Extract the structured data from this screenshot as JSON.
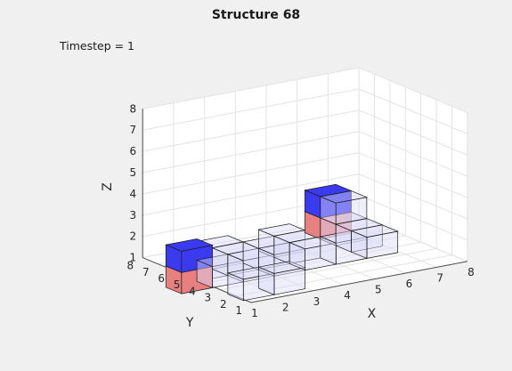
{
  "figure": {
    "title": "Structure 68",
    "annotation": "Timestep = 1"
  },
  "chart_data": {
    "type": "3d-voxel",
    "title": "Structure 68",
    "annotation": "Timestep = 1",
    "xlabel": "X",
    "ylabel": "Y",
    "zlabel": "Z",
    "xlim": [
      1,
      8
    ],
    "ylim": [
      1,
      8
    ],
    "zlim": [
      1,
      8
    ],
    "xticks": [
      "1",
      "2",
      "3",
      "4",
      "5",
      "6",
      "7",
      "8"
    ],
    "yticks": [
      "1",
      "2",
      "3",
      "4",
      "5",
      "6",
      "7",
      "8"
    ],
    "zticks": [
      "1",
      "2",
      "3",
      "4",
      "5",
      "6",
      "7",
      "8"
    ],
    "grid": true,
    "colors": {
      "empty": "#dcdcf8",
      "blue": "#3a3af0",
      "red": "#e88080"
    },
    "voxels": [
      {
        "x": 2,
        "y": 3,
        "z": 1,
        "color": "empty"
      },
      {
        "x": 3,
        "y": 3,
        "z": 1,
        "color": "empty"
      },
      {
        "x": 2,
        "y": 5,
        "z": 1,
        "color": "empty"
      },
      {
        "x": 2,
        "y": 6,
        "z": 1,
        "color": "empty"
      },
      {
        "x": 3,
        "y": 5,
        "z": 1,
        "color": "empty"
      },
      {
        "x": 3,
        "y": 6,
        "z": 1,
        "color": "empty"
      },
      {
        "x": 4,
        "y": 5,
        "z": 1,
        "color": "empty"
      },
      {
        "x": 4,
        "y": 6,
        "z": 1,
        "color": "empty"
      },
      {
        "x": 5,
        "y": 5,
        "z": 1,
        "color": "empty"
      },
      {
        "x": 5,
        "y": 6,
        "z": 1,
        "color": "empty"
      },
      {
        "x": 3,
        "y": 7,
        "z": 1,
        "color": "empty"
      },
      {
        "x": 5,
        "y": 7,
        "z": 1,
        "color": "empty"
      },
      {
        "x": 6,
        "y": 5,
        "z": 1,
        "color": "empty"
      },
      {
        "x": 7,
        "y": 5,
        "z": 1,
        "color": "empty"
      },
      {
        "x": 7,
        "y": 6,
        "z": 1,
        "color": "empty"
      },
      {
        "x": 7,
        "y": 7,
        "z": 1,
        "color": "empty"
      },
      {
        "x": 7,
        "y": 7,
        "z": 2,
        "color": "empty"
      },
      {
        "x": 1,
        "y": 5,
        "z": 1,
        "color": "red"
      },
      {
        "x": 1,
        "y": 5,
        "z": 2,
        "color": "blue"
      },
      {
        "x": 7,
        "y": 8,
        "z": 1,
        "color": "red"
      },
      {
        "x": 7,
        "y": 8,
        "z": 2,
        "color": "blue"
      }
    ]
  }
}
